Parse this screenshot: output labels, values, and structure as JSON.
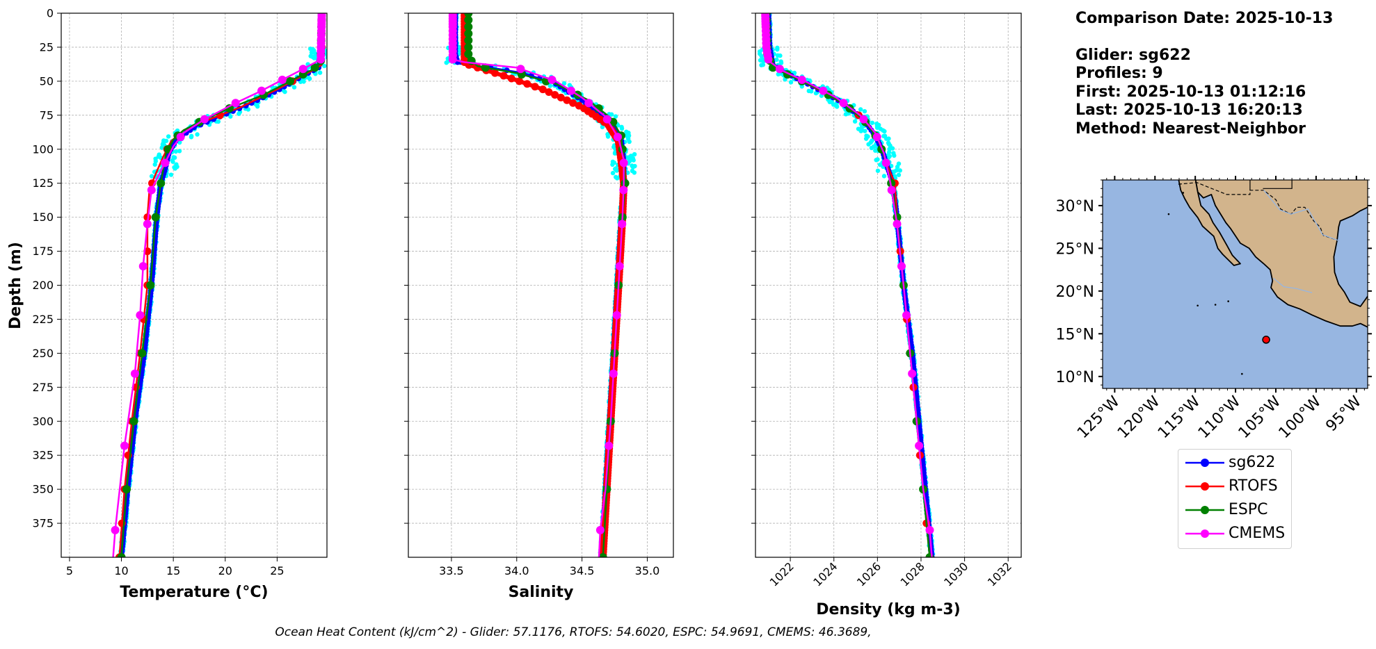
{
  "info": {
    "comparison_date": "Comparison Date: 2025-10-13",
    "glider": "Glider: sg622",
    "profiles": "Profiles: 9",
    "first": "First: 2025-10-13 01:12:16",
    "last": "Last: 2025-10-13 16:20:13",
    "method": "Method: Nearest-Neighbor"
  },
  "footer": "Ocean Heat Content (kJ/cm^2) - Glider: 57.1176,  RTOFS: 54.6020,  ESPC: 54.9691,  CMEMS: 46.3689,",
  "colors": {
    "sg622": "#0000ff",
    "RTOFS": "#ff0000",
    "ESPC": "#008000",
    "CMEMS": "#ff00ff",
    "scatter": "#00ffff",
    "ocean": "#97b6e1",
    "land": "#d2b48c"
  },
  "legend": [
    {
      "name": "sg622",
      "color": "#0000ff"
    },
    {
      "name": "RTOFS",
      "color": "#ff0000"
    },
    {
      "name": "ESPC",
      "color": "#008000"
    },
    {
      "name": "CMEMS",
      "color": "#ff00ff"
    }
  ],
  "map": {
    "lat_ticks": [
      "10°N",
      "15°N",
      "20°N",
      "25°N",
      "30°N"
    ],
    "lon_ticks": [
      "125°W",
      "120°W",
      "115°W",
      "110°W",
      "105°W",
      "100°W",
      "95°W"
    ],
    "marker": {
      "lon": -106.2,
      "lat": 14.3,
      "color": "#ff0000"
    }
  },
  "chart_data": [
    {
      "type": "line",
      "xlabel": "Temperature (°C)",
      "ylabel": "Depth (m)",
      "xlim": [
        4.2,
        29.8
      ],
      "ylim": [
        400,
        0
      ],
      "xticks": [
        5,
        10,
        15,
        20,
        25
      ],
      "yticks": [
        0,
        25,
        50,
        75,
        100,
        125,
        150,
        175,
        200,
        225,
        250,
        275,
        300,
        325,
        350,
        375
      ],
      "grid": true,
      "series": [
        {
          "name": "sg622",
          "points": [
            [
              29.3,
              0
            ],
            [
              29.3,
              30
            ],
            [
              29.0,
              40
            ],
            [
              27.5,
              46
            ],
            [
              25,
              57
            ],
            [
              22,
              68
            ],
            [
              19.5,
              76
            ],
            [
              17,
              84
            ],
            [
              15.3,
              93
            ],
            [
              14.6,
              102
            ],
            [
              14.2,
              115
            ],
            [
              13.8,
              125
            ],
            [
              13.4,
              150
            ],
            [
              12.9,
              200
            ],
            [
              12.2,
              250
            ],
            [
              11.3,
              300
            ],
            [
              10.6,
              350
            ],
            [
              10.0,
              400
            ]
          ]
        },
        {
          "name": "RTOFS",
          "points": [
            [
              29.3,
              0
            ],
            [
              29.3,
              38
            ],
            [
              28.2,
              43
            ],
            [
              25,
              56
            ],
            [
              21.5,
              69
            ],
            [
              18.5,
              78
            ],
            [
              16,
              86
            ],
            [
              14.8,
              94
            ],
            [
              14.0,
              106
            ],
            [
              13.2,
              120
            ],
            [
              12.7,
              130
            ],
            [
              12.5,
              150
            ],
            [
              12.5,
              200
            ],
            [
              11.8,
              250
            ],
            [
              11.0,
              300
            ],
            [
              10.3,
              350
            ],
            [
              9.8,
              400
            ]
          ]
        },
        {
          "name": "ESPC",
          "points": [
            [
              29.3,
              0
            ],
            [
              29.2,
              36
            ],
            [
              28.5,
              41
            ],
            [
              26.5,
              49
            ],
            [
              23.7,
              60
            ],
            [
              20.4,
              70
            ],
            [
              18,
              78
            ],
            [
              16,
              86
            ],
            [
              15,
              93
            ],
            [
              14.3,
              103
            ],
            [
              13.8,
              125
            ],
            [
              13.3,
              150
            ],
            [
              12.8,
              200
            ],
            [
              12.0,
              250
            ],
            [
              11.2,
              300
            ],
            [
              10.5,
              350
            ],
            [
              10.0,
              400
            ]
          ]
        },
        {
          "name": "CMEMS",
          "points": [
            [
              29.3,
              0
            ],
            [
              29.2,
              34
            ],
            [
              27.5,
              41
            ],
            [
              25.5,
              49
            ],
            [
              23.5,
              57
            ],
            [
              21,
              66
            ],
            [
              18,
              78
            ],
            [
              16,
              88
            ],
            [
              15,
              98
            ],
            [
              14.2,
              110
            ],
            [
              13.2,
              125
            ],
            [
              12.9,
              130
            ],
            [
              12.5,
              155
            ],
            [
              12.1,
              185
            ],
            [
              11.8,
              222
            ],
            [
              11.3,
              265
            ],
            [
              10.3,
              318
            ],
            [
              9.4,
              380
            ],
            [
              9.2,
              400
            ]
          ]
        }
      ]
    },
    {
      "type": "line",
      "xlabel": "Salinity",
      "xlim": [
        33.17,
        35.2
      ],
      "ylim": [
        400,
        0
      ],
      "xticks": [
        33.5,
        34.0,
        34.5,
        35.0
      ],
      "xtick_labels": [
        "33.5",
        "34.0",
        "34.5",
        "35.0"
      ],
      "grid": true,
      "series": [
        {
          "name": "sg622",
          "points": [
            [
              33.53,
              0
            ],
            [
              33.53,
              30
            ],
            [
              33.55,
              37
            ],
            [
              33.8,
              40
            ],
            [
              34.05,
              44
            ],
            [
              34.3,
              52
            ],
            [
              34.5,
              64
            ],
            [
              34.7,
              78
            ],
            [
              34.8,
              92
            ],
            [
              34.82,
              110
            ],
            [
              34.82,
              125
            ],
            [
              34.8,
              150
            ],
            [
              34.77,
              200
            ],
            [
              34.74,
              250
            ],
            [
              34.71,
              300
            ],
            [
              34.68,
              350
            ],
            [
              34.65,
              400
            ]
          ]
        },
        {
          "name": "RTOFS",
          "points": [
            [
              33.6,
              0
            ],
            [
              33.6,
              37
            ],
            [
              33.7,
              40
            ],
            [
              33.9,
              46
            ],
            [
              34.2,
              56
            ],
            [
              34.5,
              69
            ],
            [
              34.7,
              82
            ],
            [
              34.78,
              94
            ],
            [
              34.8,
              108
            ],
            [
              34.82,
              125
            ],
            [
              34.81,
              150
            ],
            [
              34.78,
              200
            ],
            [
              34.75,
              250
            ],
            [
              34.72,
              300
            ],
            [
              34.69,
              350
            ],
            [
              34.66,
              400
            ]
          ]
        },
        {
          "name": "ESPC",
          "points": [
            [
              33.63,
              0
            ],
            [
              33.63,
              33
            ],
            [
              33.7,
              39
            ],
            [
              34.0,
              44
            ],
            [
              34.3,
              52
            ],
            [
              34.55,
              64
            ],
            [
              34.72,
              77
            ],
            [
              34.8,
              90
            ],
            [
              34.82,
              110
            ],
            [
              34.83,
              125
            ],
            [
              34.81,
              150
            ],
            [
              34.78,
              200
            ],
            [
              34.75,
              250
            ],
            [
              34.72,
              300
            ],
            [
              34.69,
              350
            ],
            [
              34.66,
              400
            ]
          ]
        },
        {
          "name": "CMEMS",
          "points": [
            [
              33.51,
              0
            ],
            [
              33.51,
              34
            ],
            [
              33.6,
              36
            ],
            [
              34.0,
              40
            ],
            [
              34.3,
              50
            ],
            [
              34.5,
              62
            ],
            [
              34.68,
              76
            ],
            [
              34.78,
              92
            ],
            [
              34.82,
              108
            ],
            [
              34.82,
              125
            ],
            [
              34.81,
              150
            ],
            [
              34.78,
              200
            ],
            [
              34.75,
              250
            ],
            [
              34.72,
              300
            ],
            [
              34.68,
              350
            ],
            [
              34.64,
              380
            ],
            [
              34.63,
              400
            ]
          ]
        }
      ]
    },
    {
      "type": "line",
      "xlabel": "Density (kg m-3)",
      "xlim": [
        1020.4,
        1032.6
      ],
      "ylim": [
        400,
        0
      ],
      "xticks": [
        1022,
        1024,
        1026,
        1028,
        1030,
        1032
      ],
      "grid": true,
      "series": [
        {
          "name": "sg622",
          "points": [
            [
              1021.0,
              0
            ],
            [
              1021.05,
              25
            ],
            [
              1021.2,
              38
            ],
            [
              1021.8,
              44
            ],
            [
              1022.8,
              52
            ],
            [
              1024.2,
              64
            ],
            [
              1025.3,
              77
            ],
            [
              1025.9,
              90
            ],
            [
              1026.2,
              100
            ],
            [
              1026.5,
              115
            ],
            [
              1026.7,
              125
            ],
            [
              1026.9,
              150
            ],
            [
              1027.2,
              200
            ],
            [
              1027.6,
              250
            ],
            [
              1027.9,
              300
            ],
            [
              1028.2,
              350
            ],
            [
              1028.5,
              400
            ]
          ]
        },
        {
          "name": "RTOFS",
          "points": [
            [
              1020.9,
              0
            ],
            [
              1020.95,
              30
            ],
            [
              1021.3,
              40
            ],
            [
              1022.3,
              48
            ],
            [
              1023.5,
              58
            ],
            [
              1024.8,
              70
            ],
            [
              1025.6,
              82
            ],
            [
              1026.1,
              95
            ],
            [
              1026.4,
              110
            ],
            [
              1026.8,
              125
            ],
            [
              1026.9,
              150
            ],
            [
              1027.2,
              200
            ],
            [
              1027.5,
              250
            ],
            [
              1027.8,
              300
            ],
            [
              1028.1,
              350
            ],
            [
              1028.4,
              400
            ]
          ]
        },
        {
          "name": "ESPC",
          "points": [
            [
              1020.9,
              0
            ],
            [
              1020.95,
              30
            ],
            [
              1021.2,
              40
            ],
            [
              1022.0,
              46
            ],
            [
              1023.2,
              55
            ],
            [
              1024.5,
              67
            ],
            [
              1025.4,
              79
            ],
            [
              1026.0,
              92
            ],
            [
              1026.3,
              105
            ],
            [
              1026.6,
              122
            ],
            [
              1026.9,
              150
            ],
            [
              1027.2,
              200
            ],
            [
              1027.5,
              250
            ],
            [
              1027.8,
              300
            ],
            [
              1028.1,
              350
            ],
            [
              1028.4,
              400
            ]
          ]
        },
        {
          "name": "CMEMS",
          "points": [
            [
              1020.85,
              0
            ],
            [
              1020.9,
              25
            ],
            [
              1021.0,
              35
            ],
            [
              1021.6,
              42
            ],
            [
              1022.8,
              51
            ],
            [
              1024.1,
              62
            ],
            [
              1025.2,
              75
            ],
            [
              1025.9,
              88
            ],
            [
              1026.3,
              103
            ],
            [
              1026.6,
              125
            ],
            [
              1026.9,
              155
            ],
            [
              1027.2,
              200
            ],
            [
              1027.5,
              250
            ],
            [
              1027.8,
              300
            ],
            [
              1028.1,
              350
            ],
            [
              1028.4,
              380
            ],
            [
              1028.5,
              400
            ]
          ]
        }
      ]
    }
  ]
}
